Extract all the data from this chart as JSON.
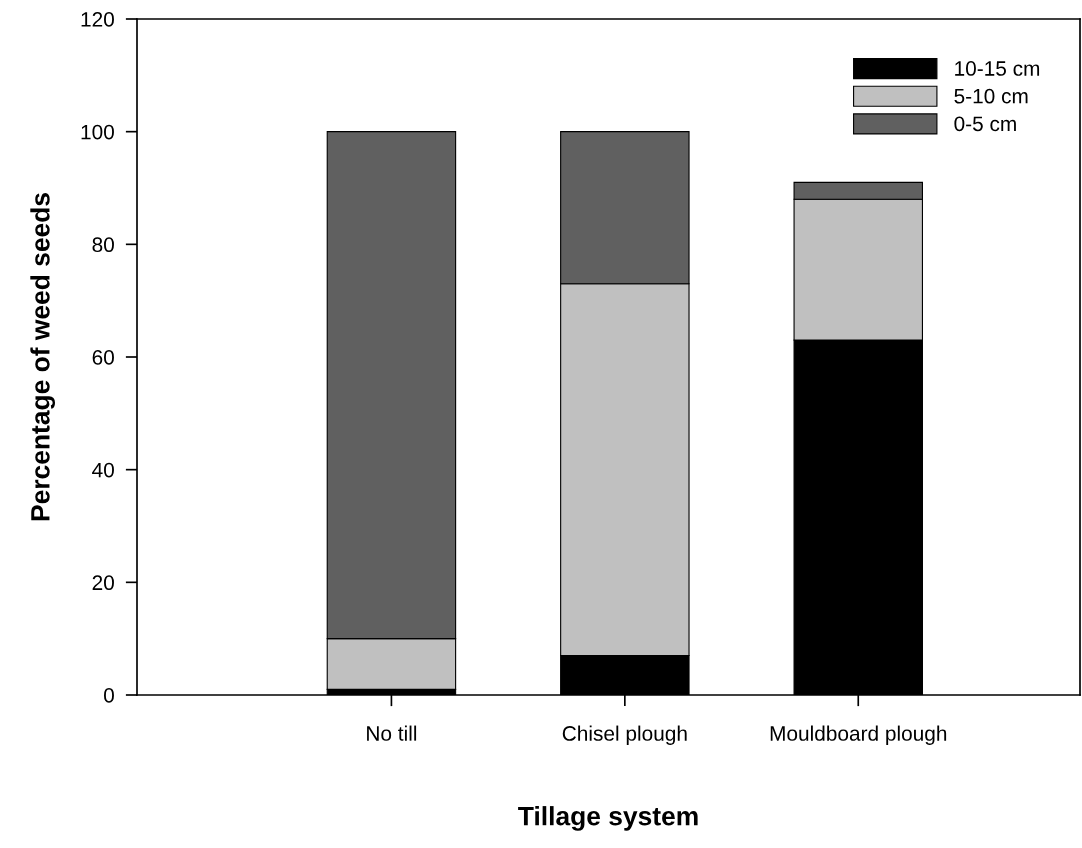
{
  "chart_data": {
    "type": "bar",
    "stacked": true,
    "xlabel": "Tillage system",
    "ylabel": "Percentage of weed seeds",
    "categories": [
      "No till",
      "Chisel plough",
      "Mouldboard plough"
    ],
    "series": [
      {
        "name": "10-15 cm",
        "color": "#000000",
        "values": [
          1,
          7,
          63
        ]
      },
      {
        "name": "5-10 cm",
        "color": "#c0c0c0",
        "values": [
          9,
          66,
          25
        ]
      },
      {
        "name": "0-5 cm",
        "color": "#606060",
        "values": [
          90,
          27,
          3
        ]
      }
    ],
    "ylim": [
      0,
      120
    ],
    "yticks": [
      0,
      20,
      40,
      60,
      80,
      100,
      120
    ],
    "grid": false,
    "legend": "top right"
  }
}
